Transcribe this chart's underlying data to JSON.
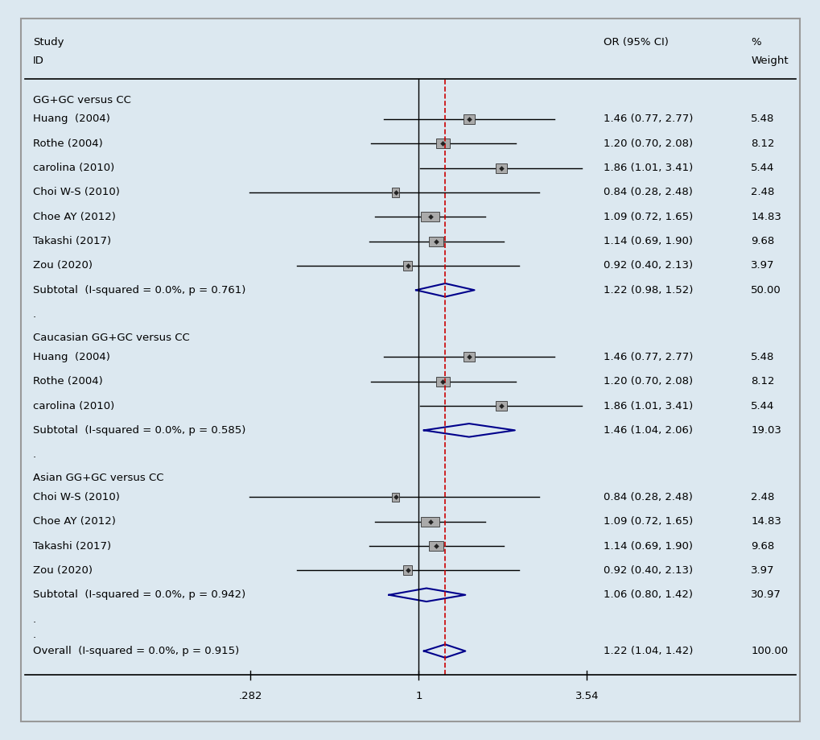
{
  "background_color": "#dce8f0",
  "title_col1": "Study\nID",
  "title_col2": "OR (95% CI)",
  "title_col3": "%\nWeight",
  "xscale_min": 0.282,
  "xscale_max": 3.54,
  "xref_line": 1.0,
  "xtick_labels": [
    ".282",
    "1",
    "3.54"
  ],
  "xtick_vals": [
    0.282,
    1.0,
    3.54
  ],
  "dashed_line_x": 1.22,
  "groups": [
    {
      "header": "GG+GC versus CC",
      "studies": [
        {
          "label": "Huang  (2004)",
          "or": 1.46,
          "ci_lo": 0.77,
          "ci_hi": 2.77,
          "weight": 5.48,
          "text": "1.46 (0.77, 2.77)",
          "wt_text": "5.48"
        },
        {
          "label": "Rothe (2004)",
          "or": 1.2,
          "ci_lo": 0.7,
          "ci_hi": 2.08,
          "weight": 8.12,
          "text": "1.20 (0.70, 2.08)",
          "wt_text": "8.12"
        },
        {
          "label": "carolina (2010)",
          "or": 1.86,
          "ci_lo": 1.01,
          "ci_hi": 3.41,
          "weight": 5.44,
          "text": "1.86 (1.01, 3.41)",
          "wt_text": "5.44"
        },
        {
          "label": "Choi W-S (2010)",
          "or": 0.84,
          "ci_lo": 0.28,
          "ci_hi": 2.48,
          "weight": 2.48,
          "text": "0.84 (0.28, 2.48)",
          "wt_text": "2.48"
        },
        {
          "label": "Choe AY (2012)",
          "or": 1.09,
          "ci_lo": 0.72,
          "ci_hi": 1.65,
          "weight": 14.83,
          "text": "1.09 (0.72, 1.65)",
          "wt_text": "14.83"
        },
        {
          "label": "Takashi (2017)",
          "or": 1.14,
          "ci_lo": 0.69,
          "ci_hi": 1.9,
          "weight": 9.68,
          "text": "1.14 (0.69, 1.90)",
          "wt_text": "9.68"
        },
        {
          "label": "Zou (2020)",
          "or": 0.92,
          "ci_lo": 0.4,
          "ci_hi": 2.13,
          "weight": 3.97,
          "text": "0.92 (0.40, 2.13)",
          "wt_text": "3.97"
        }
      ],
      "subtotal": {
        "label": "Subtotal  (I-squared = 0.0%, p = 0.761)",
        "or": 1.22,
        "ci_lo": 0.98,
        "ci_hi": 1.52,
        "text": "1.22 (0.98, 1.52)",
        "wt_text": "50.00"
      }
    },
    {
      "header": "Caucasian GG+GC versus CC",
      "studies": [
        {
          "label": "Huang  (2004)",
          "or": 1.46,
          "ci_lo": 0.77,
          "ci_hi": 2.77,
          "weight": 5.48,
          "text": "1.46 (0.77, 2.77)",
          "wt_text": "5.48"
        },
        {
          "label": "Rothe (2004)",
          "or": 1.2,
          "ci_lo": 0.7,
          "ci_hi": 2.08,
          "weight": 8.12,
          "text": "1.20 (0.70, 2.08)",
          "wt_text": "8.12"
        },
        {
          "label": "carolina (2010)",
          "or": 1.86,
          "ci_lo": 1.01,
          "ci_hi": 3.41,
          "weight": 5.44,
          "text": "1.86 (1.01, 3.41)",
          "wt_text": "5.44"
        }
      ],
      "subtotal": {
        "label": "Subtotal  (I-squared = 0.0%, p = 0.585)",
        "or": 1.46,
        "ci_lo": 1.04,
        "ci_hi": 2.06,
        "text": "1.46 (1.04, 2.06)",
        "wt_text": "19.03"
      }
    },
    {
      "header": "Asian GG+GC versus CC",
      "studies": [
        {
          "label": "Choi W-S (2010)",
          "or": 0.84,
          "ci_lo": 0.28,
          "ci_hi": 2.48,
          "weight": 2.48,
          "text": "0.84 (0.28, 2.48)",
          "wt_text": "2.48"
        },
        {
          "label": "Choe AY (2012)",
          "or": 1.09,
          "ci_lo": 0.72,
          "ci_hi": 1.65,
          "weight": 14.83,
          "text": "1.09 (0.72, 1.65)",
          "wt_text": "14.83"
        },
        {
          "label": "Takashi (2017)",
          "or": 1.14,
          "ci_lo": 0.69,
          "ci_hi": 1.9,
          "weight": 9.68,
          "text": "1.14 (0.69, 1.90)",
          "wt_text": "9.68"
        },
        {
          "label": "Zou (2020)",
          "or": 0.92,
          "ci_lo": 0.4,
          "ci_hi": 2.13,
          "weight": 3.97,
          "text": "0.92 (0.40, 2.13)",
          "wt_text": "3.97"
        }
      ],
      "subtotal": {
        "label": "Subtotal  (I-squared = 0.0%, p = 0.942)",
        "or": 1.06,
        "ci_lo": 0.8,
        "ci_hi": 1.42,
        "text": "1.06 (0.80, 1.42)",
        "wt_text": "30.97"
      }
    }
  ],
  "overall": {
    "label": "Overall  (I-squared = 0.0%, p = 0.915)",
    "or": 1.22,
    "ci_lo": 1.04,
    "ci_hi": 1.42,
    "text": "1.22 (1.04, 1.42)",
    "wt_text": "100.00"
  },
  "diamond_color": "#00008B",
  "ci_line_color": "#000000",
  "dashed_color": "#cc0000",
  "font_size": 9.5,
  "max_weight": 14.83
}
